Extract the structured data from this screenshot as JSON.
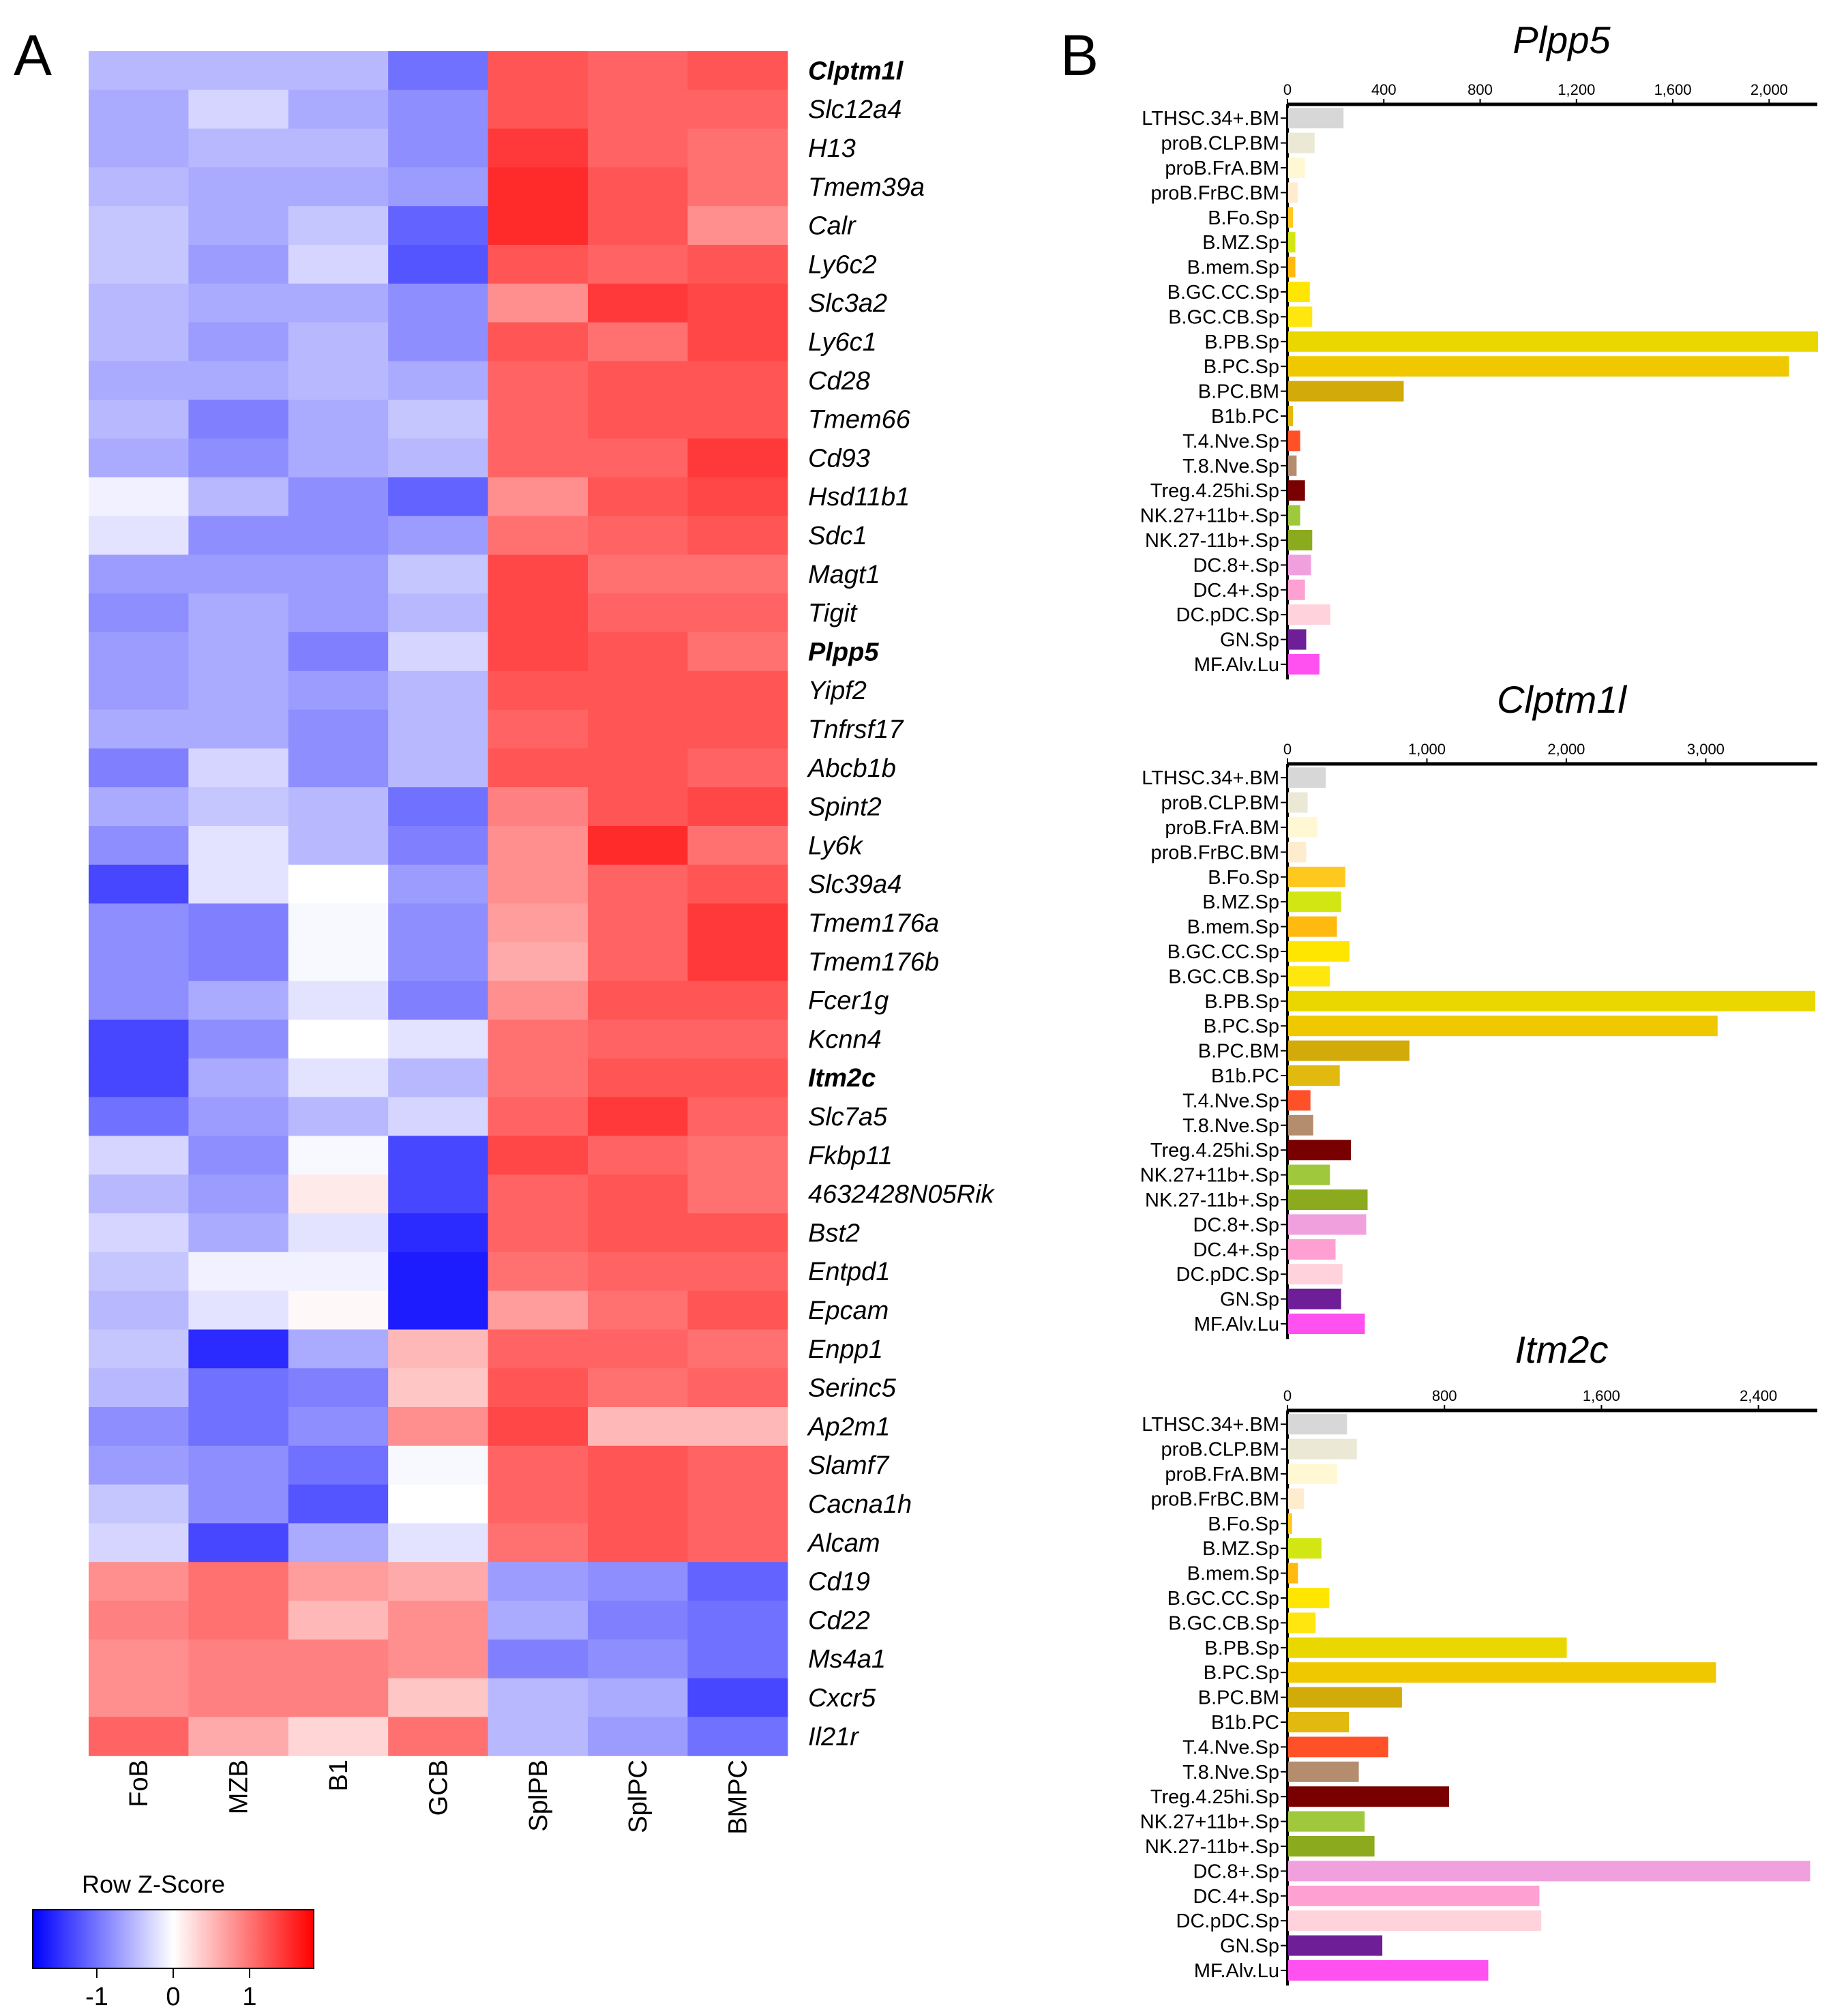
{
  "panels": {
    "a_label": "A",
    "b_label": "B"
  },
  "chart_data": [
    {
      "type": "heatmap",
      "title": "",
      "columns": [
        "FoB",
        "MZB",
        "B1",
        "GCB",
        "SplPB",
        "SplPC",
        "BMPC"
      ],
      "rows": [
        "Clptm1l",
        "Slc12a4",
        "H13",
        "Tmem39a",
        "Calr",
        "Ly6c2",
        "Slc3a2",
        "Ly6c1",
        "Cd28",
        "Tmem66",
        "Cd93",
        "Hsd11b1",
        "Sdc1",
        "Magt1",
        "Tigit",
        "Plpp5",
        "Yipf2",
        "Tnfrsf17",
        "Abcb1b",
        "Spint2",
        "Ly6k",
        "Slc39a4",
        "Tmem176a",
        "Tmem176b",
        "Fcer1g",
        "Kcnn4",
        "Itm2c",
        "Slc7a5",
        "Fkbp11",
        "4632428N05Rik",
        "Bst2",
        "Entpd1",
        "Epcam",
        "Enpp1",
        "Serinc5",
        "Ap2m1",
        "Slamf7",
        "Cacna1h",
        "Alcam",
        "Cd19",
        "Cd22",
        "Ms4a1",
        "Cxcr5",
        "Il21r"
      ],
      "highlighted_rows": [
        "Clptm1l",
        "Plpp5",
        "Itm2c"
      ],
      "highlight_color": "#ee1111",
      "values": [
        [
          -0.5,
          -0.5,
          -0.5,
          -1.0,
          1.2,
          1.1,
          1.2
        ],
        [
          -0.6,
          -0.3,
          -0.6,
          -0.8,
          1.2,
          1.1,
          1.1
        ],
        [
          -0.6,
          -0.5,
          -0.5,
          -0.8,
          1.4,
          1.1,
          1.0
        ],
        [
          -0.5,
          -0.6,
          -0.6,
          -0.7,
          1.5,
          1.2,
          1.0
        ],
        [
          -0.4,
          -0.6,
          -0.4,
          -1.1,
          1.5,
          1.2,
          0.8
        ],
        [
          -0.4,
          -0.7,
          -0.3,
          -1.2,
          1.2,
          1.1,
          1.2
        ],
        [
          -0.5,
          -0.6,
          -0.6,
          -0.8,
          0.8,
          1.4,
          1.3
        ],
        [
          -0.5,
          -0.7,
          -0.5,
          -0.8,
          1.2,
          1.0,
          1.3
        ],
        [
          -0.6,
          -0.6,
          -0.5,
          -0.6,
          1.1,
          1.2,
          1.2
        ],
        [
          -0.5,
          -0.9,
          -0.6,
          -0.4,
          1.1,
          1.2,
          1.2
        ],
        [
          -0.6,
          -0.8,
          -0.6,
          -0.5,
          1.1,
          1.1,
          1.4
        ],
        [
          -0.1,
          -0.5,
          -0.8,
          -1.1,
          0.8,
          1.2,
          1.3
        ],
        [
          -0.2,
          -0.8,
          -0.8,
          -0.7,
          1.0,
          1.1,
          1.2
        ],
        [
          -0.7,
          -0.7,
          -0.7,
          -0.4,
          1.3,
          1.0,
          1.0
        ],
        [
          -0.8,
          -0.6,
          -0.7,
          -0.5,
          1.3,
          1.1,
          1.1
        ],
        [
          -0.7,
          -0.6,
          -0.9,
          -0.3,
          1.3,
          1.2,
          1.0
        ],
        [
          -0.7,
          -0.6,
          -0.7,
          -0.5,
          1.2,
          1.2,
          1.2
        ],
        [
          -0.6,
          -0.6,
          -0.8,
          -0.5,
          1.1,
          1.2,
          1.2
        ],
        [
          -0.9,
          -0.3,
          -0.8,
          -0.5,
          1.2,
          1.2,
          1.1
        ],
        [
          -0.6,
          -0.4,
          -0.5,
          -1.0,
          0.9,
          1.2,
          1.3
        ],
        [
          -0.8,
          -0.2,
          -0.5,
          -0.9,
          0.8,
          1.5,
          1.0
        ],
        [
          -1.3,
          -0.2,
          0.0,
          -0.7,
          0.8,
          1.1,
          1.2
        ],
        [
          -0.8,
          -0.9,
          -0.05,
          -0.8,
          0.7,
          1.1,
          1.4
        ],
        [
          -0.8,
          -0.9,
          -0.05,
          -0.8,
          0.6,
          1.1,
          1.4
        ],
        [
          -0.8,
          -0.6,
          -0.2,
          -0.9,
          0.8,
          1.2,
          1.2
        ],
        [
          -1.3,
          -0.8,
          0.0,
          -0.2,
          1.0,
          1.1,
          1.1
        ],
        [
          -1.3,
          -0.6,
          -0.2,
          -0.5,
          1.0,
          1.2,
          1.2
        ],
        [
          -1.0,
          -0.7,
          -0.5,
          -0.3,
          1.1,
          1.4,
          1.1
        ],
        [
          -0.3,
          -0.8,
          -0.05,
          -1.3,
          1.3,
          1.1,
          1.0
        ],
        [
          -0.5,
          -0.7,
          0.15,
          -1.3,
          1.1,
          1.2,
          1.0
        ],
        [
          -0.3,
          -0.6,
          -0.2,
          -1.5,
          1.1,
          1.2,
          1.2
        ],
        [
          -0.4,
          -0.1,
          -0.1,
          -1.6,
          1.0,
          1.1,
          1.1
        ],
        [
          -0.5,
          -0.2,
          0.05,
          -1.6,
          0.7,
          1.0,
          1.2
        ],
        [
          -0.4,
          -1.5,
          -0.6,
          0.5,
          1.1,
          1.1,
          1.0
        ],
        [
          -0.5,
          -1.0,
          -0.9,
          0.4,
          1.2,
          1.0,
          1.1
        ],
        [
          -0.8,
          -1.0,
          -0.8,
          0.8,
          1.3,
          0.5,
          0.5
        ],
        [
          -0.7,
          -0.8,
          -1.0,
          -0.05,
          1.1,
          1.2,
          1.1
        ],
        [
          -0.4,
          -0.8,
          -1.2,
          0.0,
          1.1,
          1.2,
          1.1
        ],
        [
          -0.3,
          -1.3,
          -0.6,
          -0.2,
          1.0,
          1.2,
          1.1
        ],
        [
          0.8,
          1.0,
          0.7,
          0.6,
          -0.7,
          -0.8,
          -1.1
        ],
        [
          0.9,
          1.0,
          0.5,
          0.8,
          -0.6,
          -0.9,
          -1.0
        ],
        [
          0.8,
          0.9,
          0.9,
          0.8,
          -0.9,
          -0.8,
          -1.0
        ],
        [
          0.8,
          0.9,
          0.9,
          0.4,
          -0.5,
          -0.6,
          -1.3
        ],
        [
          1.1,
          0.6,
          0.3,
          1.0,
          -0.5,
          -0.7,
          -1.0
        ]
      ],
      "legend": {
        "title": "Row Z-Score",
        "ticks": [
          "-1",
          "0",
          "1"
        ],
        "range": [
          -1.8,
          1.8
        ],
        "colors": [
          "#0000ff",
          "#ffffff",
          "#ff0000"
        ]
      }
    },
    {
      "type": "bar",
      "orientation": "horizontal",
      "title": "Plpp5",
      "categories": [
        "LTHSC.34+.BM",
        "proB.CLP.BM",
        "proB.FrA.BM",
        "proB.FrBC.BM",
        "B.Fo.Sp",
        "B.MZ.Sp",
        "B.mem.Sp",
        "B.GC.CC.Sp",
        "B.GC.CB.Sp",
        "B.PB.Sp",
        "B.PC.Sp",
        "B.PC.BM",
        "B1b.PC",
        "T.4.Nve.Sp",
        "T.8.Nve.Sp",
        "Treg.4.25hi.Sp",
        "NK.27+11b+.Sp",
        "NK.27-11b+.Sp",
        "DC.8+.Sp",
        "DC.4+.Sp",
        "DC.pDC.Sp",
        "GN.Sp",
        "MF.Alv.Lu"
      ],
      "values": [
        230,
        110,
        70,
        40,
        20,
        30,
        30,
        90,
        100,
        2200,
        2080,
        480,
        20,
        50,
        35,
        70,
        50,
        100,
        95,
        70,
        175,
        75,
        130
      ],
      "xlim": [
        0,
        2200
      ],
      "ticks": [
        0,
        400,
        800,
        1200,
        1600,
        2000
      ],
      "tick_labels": [
        "0",
        "400",
        "800",
        "1,200",
        "1,600",
        "2,000"
      ]
    },
    {
      "type": "bar",
      "orientation": "horizontal",
      "title": "Clptm1l",
      "categories": [
        "LTHSC.34+.BM",
        "proB.CLP.BM",
        "proB.FrA.BM",
        "proB.FrBC.BM",
        "B.Fo.Sp",
        "B.MZ.Sp",
        "B.mem.Sp",
        "B.GC.CC.Sp",
        "B.GC.CB.Sp",
        "B.PB.Sp",
        "B.PC.Sp",
        "B.PC.BM",
        "B1b.PC",
        "T.4.Nve.Sp",
        "T.8.Nve.Sp",
        "Treg.4.25hi.Sp",
        "NK.27+11b+.Sp",
        "NK.27-11b+.Sp",
        "DC.8+.Sp",
        "DC.4+.Sp",
        "DC.pDC.Sp",
        "GN.Sp",
        "MF.Alv.Lu"
      ],
      "values": [
        270,
        140,
        210,
        130,
        410,
        380,
        350,
        440,
        300,
        3780,
        3080,
        870,
        370,
        160,
        180,
        450,
        300,
        570,
        560,
        340,
        390,
        380,
        550
      ],
      "xlim": [
        0,
        3800
      ],
      "ticks": [
        0,
        1000,
        2000,
        3000
      ],
      "tick_labels": [
        "0",
        "1,000",
        "2,000",
        "3,000"
      ]
    },
    {
      "type": "bar",
      "orientation": "horizontal",
      "title": "Itm2c",
      "categories": [
        "LTHSC.34+.BM",
        "proB.CLP.BM",
        "proB.FrA.BM",
        "proB.FrBC.BM",
        "B.Fo.Sp",
        "B.MZ.Sp",
        "B.mem.Sp",
        "B.GC.CC.Sp",
        "B.GC.CB.Sp",
        "B.PB.Sp",
        "B.PC.Sp",
        "B.PC.BM",
        "B1b.PC",
        "T.4.Nve.Sp",
        "T.8.Nve.Sp",
        "Treg.4.25hi.Sp",
        "NK.27+11b+.Sp",
        "NK.27-11b+.Sp",
        "DC.8+.Sp",
        "DC.4+.Sp",
        "DC.pDC.Sp",
        "GN.Sp",
        "MF.Alv.Lu"
      ],
      "values": [
        300,
        350,
        250,
        80,
        20,
        170,
        50,
        210,
        140,
        1420,
        2180,
        580,
        310,
        510,
        360,
        820,
        390,
        440,
        2660,
        1280,
        1290,
        480,
        1020
      ],
      "xlim": [
        0,
        2700
      ],
      "ticks": [
        0,
        800,
        1600,
        2400
      ],
      "tick_labels": [
        "0",
        "800",
        "1,600",
        "2,400"
      ]
    }
  ],
  "bar_colors": [
    "#d7d7d7",
    "#ebe8d6",
    "#fff8d2",
    "#ffebcd",
    "#ffc81e",
    "#d2e614",
    "#ffb90f",
    "#ffe600",
    "#ffe60f",
    "#ebd700",
    "#f0c800",
    "#d2aa0a",
    "#e1b90f",
    "#ff5028",
    "#b48c6e",
    "#780000",
    "#a0c83c",
    "#8caa1e",
    "#f0a0dc",
    "#ffa0d2",
    "#ffd2dc",
    "#6e1e96",
    "#ff50f0"
  ]
}
